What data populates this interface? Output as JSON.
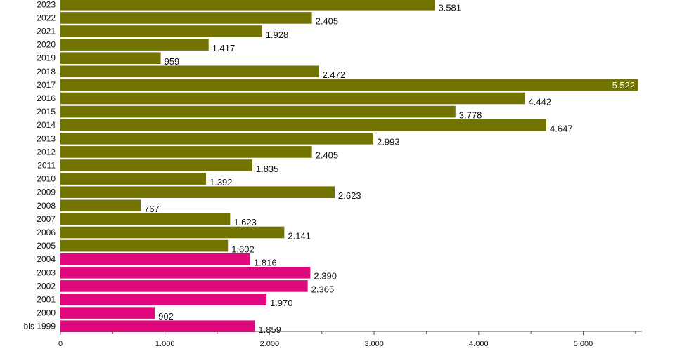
{
  "chart_data": {
    "type": "bar",
    "orientation": "horizontal",
    "title": "",
    "xlabel": "",
    "ylabel": "",
    "xlim": [
      0,
      5560
    ],
    "grid": false,
    "legend": "none",
    "colors": {
      "default": "#737300",
      "highlight": "#e0087c"
    },
    "categories": [
      "2023",
      "2022",
      "2021",
      "2020",
      "2019",
      "2018",
      "2017",
      "2016",
      "2015",
      "2014",
      "2013",
      "2012",
      "2011",
      "2010",
      "2009",
      "2008",
      "2007",
      "2006",
      "2005",
      "2004",
      "2003",
      "2002",
      "2001",
      "2000",
      "bis 1999"
    ],
    "values": [
      3581,
      2405,
      1928,
      1417,
      959,
      2472,
      5522,
      4442,
      3778,
      4647,
      2993,
      2405,
      1835,
      1392,
      2623,
      767,
      1623,
      2141,
      1602,
      1816,
      2390,
      2365,
      1970,
      902,
      1859
    ],
    "value_labels": [
      "3.581",
      "2.405",
      "1.928",
      "1.417",
      "959",
      "2.472",
      "5.522",
      "4.442",
      "3.778",
      "4.647",
      "2.993",
      "2.405",
      "1.835",
      "1.392",
      "2.623",
      "767",
      "1.623",
      "2.141",
      "1.602",
      "1.816",
      "2.390",
      "2.365",
      "1.970",
      "902",
      "1.859"
    ],
    "highlight": [
      false,
      false,
      false,
      false,
      false,
      false,
      false,
      false,
      false,
      false,
      false,
      false,
      false,
      false,
      false,
      false,
      false,
      false,
      false,
      true,
      true,
      true,
      true,
      true,
      true
    ],
    "x_ticks": [
      0,
      1000,
      2000,
      3000,
      4000,
      5000
    ],
    "x_tick_labels": [
      "0",
      "1.000",
      "2.000",
      "3.000",
      "4.000",
      "5.000"
    ]
  }
}
